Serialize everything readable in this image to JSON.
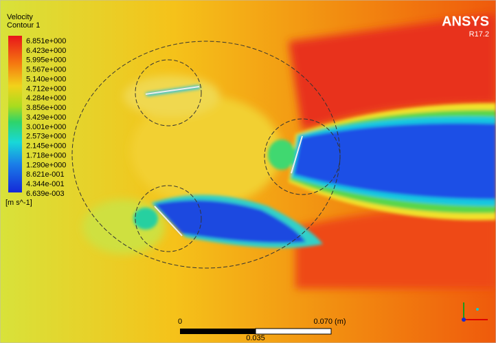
{
  "legend": {
    "title": "Velocity",
    "subtitle": "Contour 1",
    "levels": [
      "6.851e+000",
      "6.423e+000",
      "5.995e+000",
      "5.567e+000",
      "5.140e+000",
      "4.712e+000",
      "4.284e+000",
      "3.856e+000",
      "3.429e+000",
      "3.001e+000",
      "2.573e+000",
      "2.145e+000",
      "1.718e+000",
      "1.290e+000",
      "8.621e-001",
      "4.344e-001",
      "6.639e-003"
    ],
    "unit": "[m s^-1]"
  },
  "brand": {
    "name": "ANSYS",
    "version": "R17.2"
  },
  "scale": {
    "start": "0",
    "end": "0.070 (m)",
    "mid": "0.035"
  }
}
